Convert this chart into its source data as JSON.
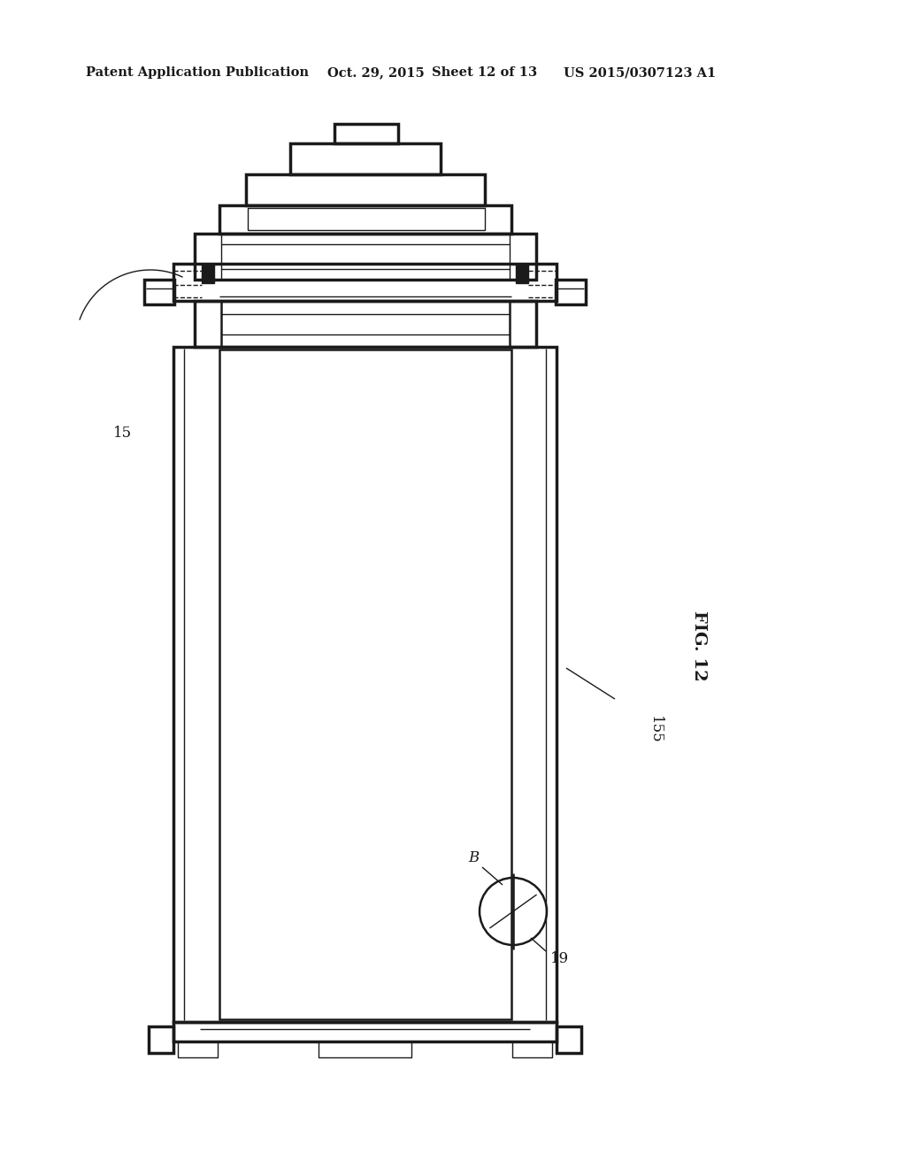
{
  "bg_color": "#ffffff",
  "line_color": "#1a1a1a",
  "header_text": "Patent Application Publication",
  "header_date": "Oct. 29, 2015",
  "header_sheet": "Sheet 12 of 13",
  "header_patent": "US 2015/0307123 A1",
  "fig_label": "FIG. 12",
  "label_15": "15",
  "label_155": "155",
  "label_19": "19",
  "label_B": "B",
  "lw_thick": 2.5,
  "lw_thin": 1.0,
  "lw_medium": 1.8
}
